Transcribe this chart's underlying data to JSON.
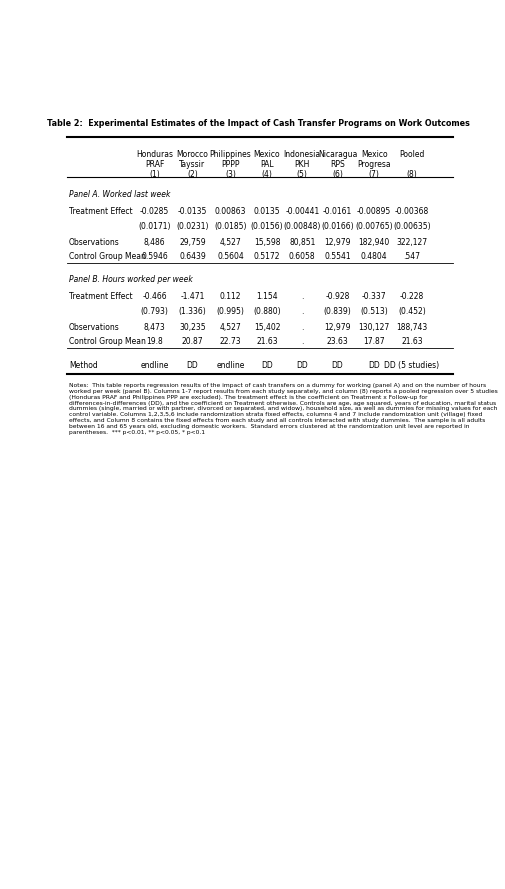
{
  "title": "Table 2:  Experimental Estimates of the Impact of Cash Transfer Programs on Work Outcomes",
  "col_headers_line1": [
    "Honduras",
    "Morocco",
    "Philippines",
    "Mexico",
    "Indonesia",
    "Nicaragua",
    "Mexico",
    "Pooled"
  ],
  "col_headers_line2": [
    "PRAF",
    "Tayssir",
    "PPPP",
    "PAL",
    "PKH",
    "RPS",
    "Progresa",
    ""
  ],
  "col_numbers": [
    "(1)",
    "(2)",
    "(3)",
    "(4)",
    "(5)",
    "(6)",
    "(7)",
    "(8)"
  ],
  "panel_a_title": "Panel A. Worked last week",
  "panel_b_title": "Panel B. Hours worked per week",
  "panel_a": {
    "treatment_effect": [
      "-0.0285",
      "-0.0135",
      "0.00863",
      "0.0135",
      "-0.00441",
      "-0.0161",
      "-0.00895",
      "-0.00368"
    ],
    "se": [
      "(0.0171)",
      "(0.0231)",
      "(0.0185)",
      "(0.0156)",
      "(0.00848)",
      "(0.0166)",
      "(0.00765)",
      "(0.00635)"
    ],
    "observations": [
      "8,486",
      "29,759",
      "4,527",
      "15,598",
      "80,851",
      "12,979",
      "182,940",
      "322,127"
    ],
    "control_group_mean": [
      "0.5946",
      "0.6439",
      "0.5604",
      "0.5172",
      "0.6058",
      "0.5541",
      "0.4804",
      ".547"
    ]
  },
  "panel_b": {
    "treatment_effect": [
      "-0.466",
      "-1.471",
      "0.112",
      "1.154",
      ".",
      "-0.928",
      "-0.337",
      "-0.228"
    ],
    "se": [
      "(0.793)",
      "(1.336)",
      "(0.995)",
      "(0.880)",
      ".",
      "(0.839)",
      "(0.513)",
      "(0.452)"
    ],
    "observations": [
      "8,473",
      "30,235",
      "4,527",
      "15,402",
      ".",
      "12,979",
      "130,127",
      "188,743"
    ],
    "control_group_mean": [
      "19.8",
      "20.87",
      "22.73",
      "21.63",
      ".",
      "23.63",
      "17.87",
      "21.63"
    ]
  },
  "method": [
    "endline",
    "DD",
    "endline",
    "DD",
    "DD",
    "DD",
    "DD",
    "DD (5 studies)"
  ],
  "notes": "Notes:  This table reports regression results of the impact of cash transfers on a dummy for working (panel A) and on the number of hours worked per week (panel B). Columns 1-7 report results from each study separately, and column (8) reports a pooled regression over 5 studies (Honduras PRAF and Philippines PPP are excluded). The treatment effect is the coefficient on Treatment x Follow-up for differences-in-differences (DD), and the coefficient on Treatment otherwise. Controls are age, age squared, years of education, marital status dummies (single, married or with partner, divorced or separated, and widow), household size, as well as dummies for missing values for each control variable. Columns 1,2,3,5,6 include randomization strata fixed effects, columns 4 and 7 include randomization unit (village) fixed effects, and Column 8 contains the fixed effects from each study and all controls interacted with study dummies.  The sample is all adults between 16 and 65 years old, excluding domestic workers.  Standard errors clustered at the randomization unit level are reported in parentheses.  *** p<0.01, ** p<0.05, * p<0.1"
}
